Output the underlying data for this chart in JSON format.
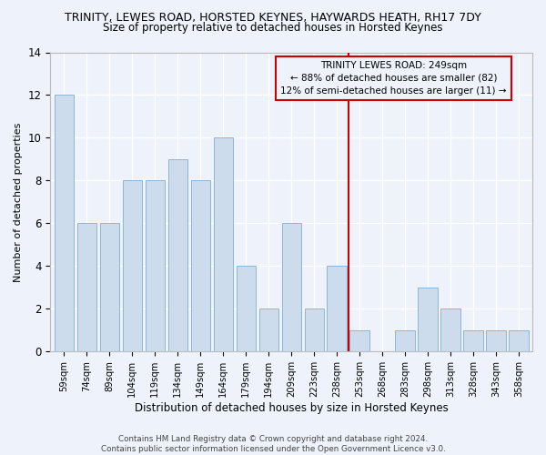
{
  "title": "TRINITY, LEWES ROAD, HORSTED KEYNES, HAYWARDS HEATH, RH17 7DY",
  "subtitle": "Size of property relative to detached houses in Horsted Keynes",
  "xlabel": "Distribution of detached houses by size in Horsted Keynes",
  "ylabel": "Number of detached properties",
  "categories": [
    "59sqm",
    "74sqm",
    "89sqm",
    "104sqm",
    "119sqm",
    "134sqm",
    "149sqm",
    "164sqm",
    "179sqm",
    "194sqm",
    "209sqm",
    "223sqm",
    "238sqm",
    "253sqm",
    "268sqm",
    "283sqm",
    "298sqm",
    "313sqm",
    "328sqm",
    "343sqm",
    "358sqm"
  ],
  "values": [
    12,
    6,
    6,
    8,
    8,
    9,
    8,
    10,
    4,
    2,
    6,
    2,
    4,
    1,
    0,
    1,
    3,
    2,
    1,
    1,
    1
  ],
  "bar_color": "#cddcec",
  "bar_edge_color": "#7fadd4",
  "bar_width": 0.85,
  "ylim": [
    0,
    14
  ],
  "yticks": [
    0,
    2,
    4,
    6,
    8,
    10,
    12,
    14
  ],
  "vline_index": 12.5,
  "vline_color": "#cc0000",
  "annotation_line1": "TRINITY LEWES ROAD: 249sqm",
  "annotation_line2": "← 88% of detached houses are smaller (82)",
  "annotation_line3": "12% of semi-detached houses are larger (11) →",
  "annotation_box_color": "#cc0000",
  "footnote": "Contains HM Land Registry data © Crown copyright and database right 2024.\nContains public sector information licensed under the Open Government Licence v3.0.",
  "background_color": "#eef2fa",
  "grid_color": "#ffffff"
}
